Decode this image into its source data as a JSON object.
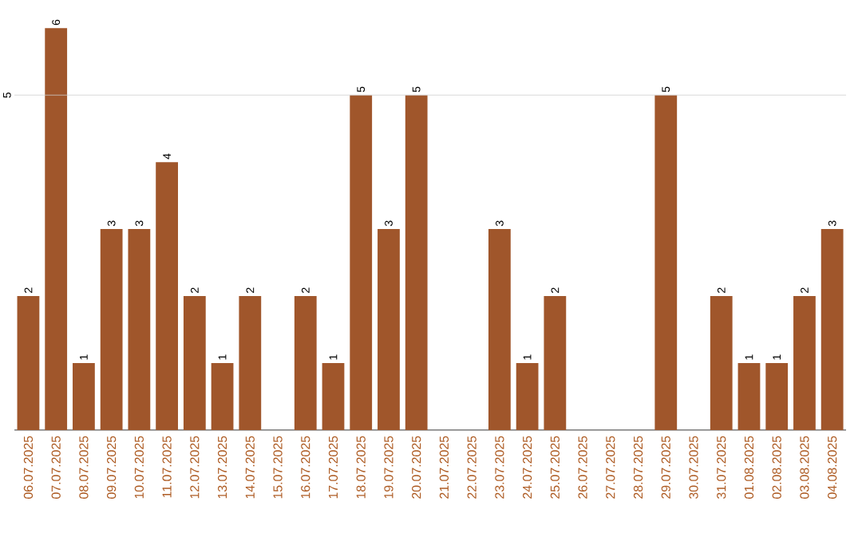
{
  "chart_data": {
    "type": "bar",
    "categories": [
      "06.07.2025",
      "07.07.2025",
      "08.07.2025",
      "09.07.2025",
      "10.07.2025",
      "11.07.2025",
      "12.07.2025",
      "13.07.2025",
      "14.07.2025",
      "15.07.2025",
      "16.07.2025",
      "17.07.2025",
      "18.07.2025",
      "19.07.2025",
      "20.07.2025",
      "21.07.2025",
      "22.07.2025",
      "23.07.2025",
      "24.07.2025",
      "25.07.2025",
      "26.07.2025",
      "27.07.2025",
      "28.07.2025",
      "29.07.2025",
      "30.07.2025",
      "31.07.2025",
      "01.08.2025",
      "02.08.2025",
      "03.08.2025",
      "04.08.2025"
    ],
    "values": [
      2,
      6,
      1,
      3,
      3,
      4,
      2,
      1,
      2,
      0,
      2,
      1,
      5,
      3,
      5,
      0,
      0,
      3,
      1,
      2,
      0,
      0,
      0,
      5,
      0,
      2,
      1,
      1,
      2,
      3
    ],
    "value_labels": [
      "2",
      "6",
      "1",
      "3",
      "3",
      "4",
      "2",
      "1",
      "2",
      null,
      "2",
      "1",
      "5",
      "3",
      "5",
      null,
      null,
      "3",
      "1",
      "2",
      null,
      null,
      null,
      "5",
      null,
      "2",
      "1",
      "1",
      "2",
      "3"
    ],
    "color": "#a0562b",
    "ref_lines": [
      {
        "axis": "y",
        "value": 5,
        "label": "5",
        "color": "#cccccc"
      }
    ]
  }
}
